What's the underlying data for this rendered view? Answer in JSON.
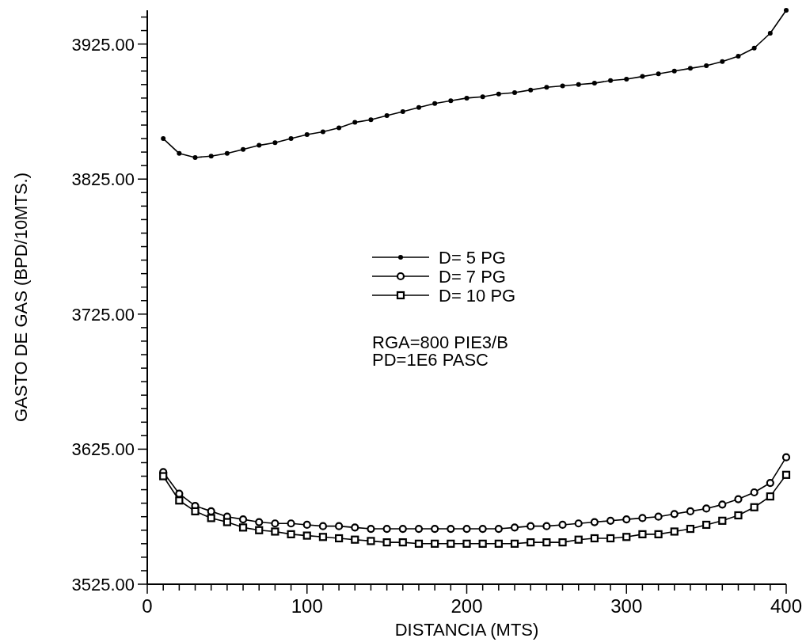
{
  "chart_data": {
    "type": "line",
    "xlabel": "DISTANCIA  (MTS)",
    "ylabel": "GASTO  DE  GAS  (BPD/10MTS.)",
    "x": [
      10,
      20,
      30,
      40,
      50,
      60,
      70,
      80,
      90,
      100,
      110,
      120,
      130,
      140,
      150,
      160,
      170,
      180,
      190,
      200,
      210,
      220,
      230,
      240,
      250,
      260,
      270,
      280,
      290,
      300,
      310,
      320,
      330,
      340,
      350,
      360,
      370,
      380,
      390,
      400
    ],
    "series": [
      {
        "name": "D=  5  PG",
        "color": "#000000",
        "marker": "circle",
        "values": [
          3855,
          3844,
          3841,
          3842,
          3844,
          3847,
          3850,
          3852,
          3855,
          3858,
          3860,
          3863,
          3867,
          3869,
          3872,
          3875,
          3878,
          3881,
          3883,
          3885,
          3886,
          3888,
          3889,
          3891,
          3893,
          3894,
          3895,
          3896,
          3898,
          3899,
          3901,
          3903,
          3905,
          3907,
          3909,
          3912,
          3916,
          3922,
          3933,
          3950
        ]
      },
      {
        "name": "D=  7  PG",
        "color": "#000000",
        "marker": "circle",
        "values": [
          3608,
          3592,
          3583,
          3579,
          3575,
          3573,
          3571,
          3570,
          3570,
          3569,
          3568,
          3568,
          3567,
          3566,
          3566,
          3566,
          3566,
          3566,
          3566,
          3566,
          3566,
          3566,
          3567,
          3568,
          3568,
          3569,
          3570,
          3571,
          3572,
          3573,
          3574,
          3575,
          3577,
          3579,
          3581,
          3584,
          3588,
          3593,
          3600,
          3619
        ]
      },
      {
        "name": "D=  10  PG",
        "color": "#000000",
        "marker": "square",
        "values": [
          3605,
          3587,
          3579,
          3574,
          3571,
          3567,
          3565,
          3564,
          3562,
          3561,
          3560,
          3559,
          3558,
          3557,
          3556,
          3556,
          3555,
          3555,
          3555,
          3555,
          3555,
          3555,
          3555,
          3556,
          3556,
          3556,
          3558,
          3559,
          3559,
          3560,
          3562,
          3562,
          3564,
          3566,
          3569,
          3572,
          3576,
          3582,
          3590,
          3606
        ]
      }
    ],
    "xlim": [
      0,
      400
    ],
    "xticks": [
      0,
      {
        "value": 10,
        "label": null
      },
      {
        "value": 20,
        "label": null
      },
      {
        "value": 30,
        "label": null
      },
      {
        "value": 40,
        "label": null
      },
      {
        "value": 50,
        "label": null
      },
      {
        "value": 60,
        "label": null
      },
      {
        "value": 70,
        "label": null
      },
      {
        "value": 80,
        "label": null
      },
      {
        "value": 90,
        "label": null
      },
      100,
      {
        "value": 110,
        "label": null
      },
      {
        "value": 120,
        "label": null
      },
      {
        "value": 130,
        "label": null
      },
      {
        "value": 140,
        "label": null
      },
      {
        "value": 150,
        "label": null
      },
      {
        "value": 160,
        "label": null
      },
      {
        "value": 170,
        "label": null
      },
      {
        "value": 180,
        "label": null
      },
      {
        "value": 190,
        "label": null
      },
      200,
      {
        "value": 210,
        "label": null
      },
      {
        "value": 220,
        "label": null
      },
      {
        "value": 230,
        "label": null
      },
      {
        "value": 240,
        "label": null
      },
      {
        "value": 250,
        "label": null
      },
      {
        "value": 260,
        "label": null
      },
      {
        "value": 270,
        "label": null
      },
      {
        "value": 280,
        "label": null
      },
      {
        "value": 290,
        "label": null
      },
      300,
      {
        "value": 310,
        "label": null
      },
      {
        "value": 320,
        "label": null
      },
      {
        "value": 330,
        "label": null
      },
      {
        "value": 340,
        "label": null
      },
      {
        "value": 350,
        "label": null
      },
      {
        "value": 360,
        "label": null
      },
      {
        "value": 370,
        "label": null
      },
      {
        "value": 380,
        "label": null
      },
      {
        "value": 390,
        "label": null
      },
      400
    ],
    "ylim": [
      3525,
      3950
    ],
    "yticks": [
      {
        "value": 3525,
        "label": "3525.00"
      },
      {
        "value": 3535,
        "label": null
      },
      {
        "value": 3545,
        "label": null
      },
      {
        "value": 3555,
        "label": null
      },
      {
        "value": 3565,
        "label": null
      },
      {
        "value": 3575,
        "label": null
      },
      {
        "value": 3585,
        "label": null
      },
      {
        "value": 3595,
        "label": null
      },
      {
        "value": 3605,
        "label": null
      },
      {
        "value": 3615,
        "label": null
      },
      {
        "value": 3625,
        "label": "3625.00"
      },
      {
        "value": 3635,
        "label": null
      },
      {
        "value": 3645,
        "label": null
      },
      {
        "value": 3655,
        "label": null
      },
      {
        "value": 3665,
        "label": null
      },
      {
        "value": 3675,
        "label": null
      },
      {
        "value": 3685,
        "label": null
      },
      {
        "value": 3695,
        "label": null
      },
      {
        "value": 3705,
        "label": null
      },
      {
        "value": 3715,
        "label": null
      },
      {
        "value": 3725,
        "label": "3725.00"
      },
      {
        "value": 3735,
        "label": null
      },
      {
        "value": 3745,
        "label": null
      },
      {
        "value": 3755,
        "label": null
      },
      {
        "value": 3765,
        "label": null
      },
      {
        "value": 3775,
        "label": null
      },
      {
        "value": 3785,
        "label": null
      },
      {
        "value": 3795,
        "label": null
      },
      {
        "value": 3805,
        "label": null
      },
      {
        "value": 3815,
        "label": null
      },
      {
        "value": 3825,
        "label": "3825.00"
      },
      {
        "value": 3835,
        "label": null
      },
      {
        "value": 3845,
        "label": null
      },
      {
        "value": 3855,
        "label": null
      },
      {
        "value": 3865,
        "label": null
      },
      {
        "value": 3875,
        "label": null
      },
      {
        "value": 3885,
        "label": null
      },
      {
        "value": 3895,
        "label": null
      },
      {
        "value": 3905,
        "label": null
      },
      {
        "value": 3915,
        "label": null
      },
      {
        "value": 3925,
        "label": "3925.00"
      },
      {
        "value": 3935,
        "label": null
      },
      {
        "value": 3945,
        "label": null
      }
    ],
    "legend": "center",
    "line_style": "solid",
    "annotations": [
      "RGA=800  PIE3/B",
      "PD=1E6   PASC"
    ]
  }
}
